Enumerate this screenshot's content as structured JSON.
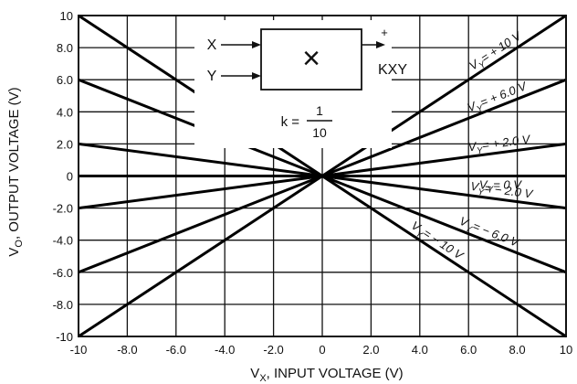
{
  "chart_data": {
    "type": "line",
    "title": "",
    "xlabel": "V_X, INPUT VOLTAGE (V)",
    "xlabel_parts": {
      "main": "V",
      "sub": "X",
      "rest": ", INPUT VOLTAGE (V)"
    },
    "ylabel": "V_O, OUTPUT VOLTAGE (V)",
    "ylabel_parts": {
      "main": "V",
      "sub": "O",
      "rest": ", OUTPUT VOLTAGE (V)"
    },
    "xlim": [
      -10,
      10
    ],
    "ylim": [
      -10,
      10
    ],
    "grid": true,
    "x_ticks": [
      -10,
      -8,
      -6,
      -4,
      -2,
      0,
      2,
      4,
      6,
      8,
      10
    ],
    "x_tick_labels": [
      "-10",
      "-8.0",
      "-6.0",
      "-4.0",
      "-2.0",
      "0",
      "2.0",
      "4.0",
      "6.0",
      "8.0",
      "10"
    ],
    "y_ticks": [
      10,
      8,
      6,
      4,
      2,
      0,
      -2,
      -4,
      -6,
      -8,
      -10
    ],
    "y_tick_labels": [
      "10",
      "8.0",
      "6.0",
      "4.0",
      "2.0",
      "0",
      "-2.0",
      "-4.0",
      "-6.0",
      "-8.0",
      "-10"
    ],
    "series": [
      {
        "name": "VY = + 10 V",
        "label_main": "V",
        "label_sub": "Y",
        "label_rest": "= + 10 V",
        "x": [
          -10,
          10
        ],
        "y": [
          -10,
          10
        ]
      },
      {
        "name": "VY = + 6.0 V",
        "label_main": "V",
        "label_sub": "Y",
        "label_rest": "= + 6.0 V",
        "x": [
          -10,
          10
        ],
        "y": [
          -6,
          6
        ]
      },
      {
        "name": "VY = + 2.0 V",
        "label_main": "V",
        "label_sub": "Y",
        "label_rest": "= + 2.0 V",
        "x": [
          -10,
          10
        ],
        "y": [
          -2,
          2
        ]
      },
      {
        "name": "VY = 0 V",
        "label_main": "V",
        "label_sub": "Y",
        "label_rest": "= 0 V",
        "x": [
          -10,
          10
        ],
        "y": [
          0,
          0
        ]
      },
      {
        "name": "VY = − 2.0 V",
        "label_main": "V",
        "label_sub": "Y",
        "label_rest": "= − 2.0 V",
        "x": [
          -10,
          10
        ],
        "y": [
          2,
          -2
        ]
      },
      {
        "name": "VY = − 6.0 V",
        "label_main": "V",
        "label_sub": "Y",
        "label_rest": "= − 6.0 V",
        "x": [
          -10,
          10
        ],
        "y": [
          6,
          -6
        ]
      },
      {
        "name": "VY = − 10 V",
        "label_main": "V",
        "label_sub": "Y",
        "label_rest": "= − 10 V",
        "x": [
          -10,
          10
        ],
        "y": [
          10,
          -10
        ]
      }
    ]
  },
  "diagram": {
    "input_x": "X",
    "input_y": "Y",
    "symbol": "×",
    "output_sign": "+",
    "output": "KXY",
    "k_label": "k =",
    "k_numerator": "1",
    "k_denominator": "10"
  }
}
